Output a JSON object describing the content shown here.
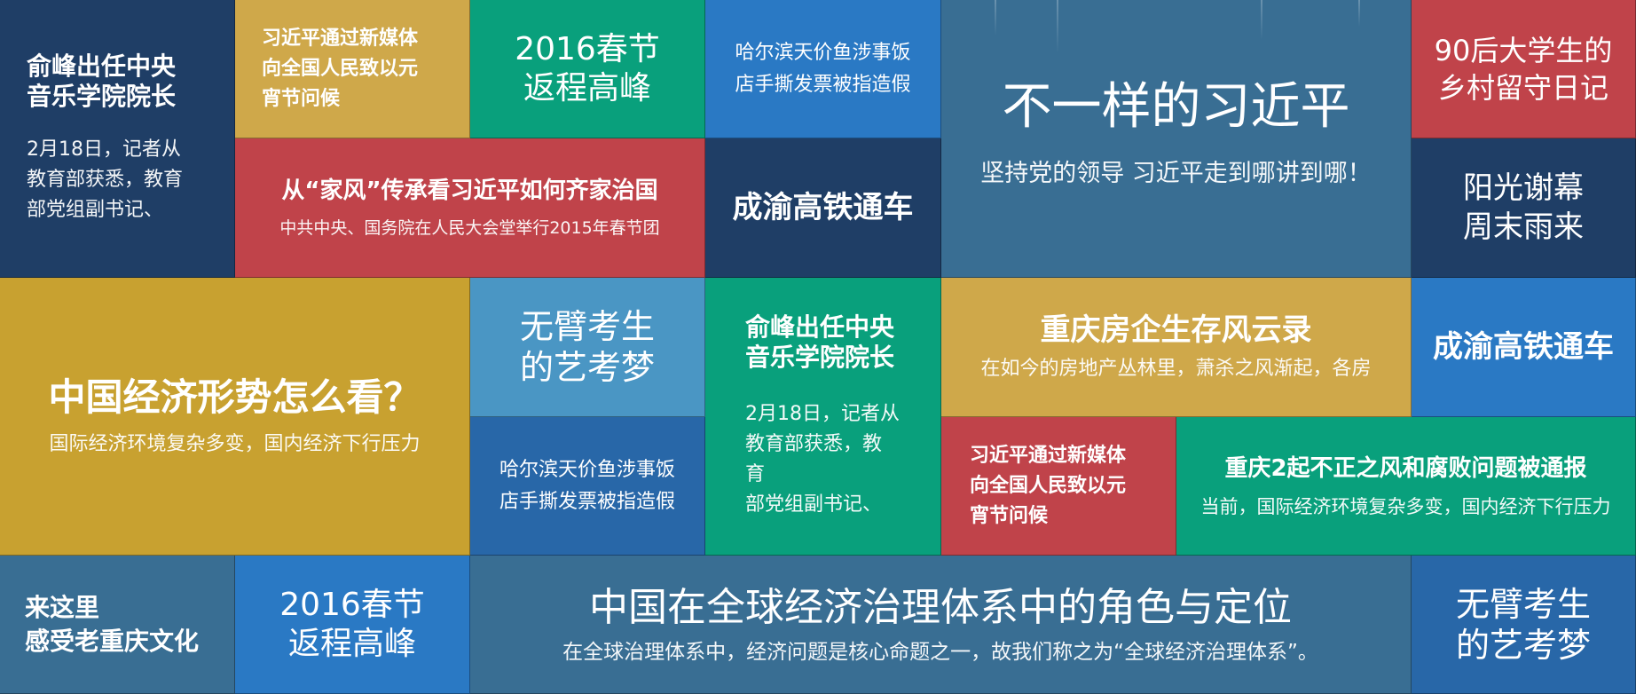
{
  "tiles": {
    "t1": {
      "title": "俞峰出任中央\n音乐学院院长",
      "text": "2月18日，记者从\n教育部获悉，教育\n部党组副书记、"
    },
    "t2": {
      "title": "习近平通过新媒体\n向全国人民致以元\n宵节问候"
    },
    "t3": {
      "title": "2016春节\n返程高峰"
    },
    "t4": {
      "title": "哈尔滨天价鱼涉事饭\n店手撕发票被指造假"
    },
    "t5": {
      "title": "不一样的习近平",
      "text": "坚持党的领导 习近平走到哪讲到哪！"
    },
    "t6": {
      "title": "90后大学生的\n乡村留守日记"
    },
    "t7": {
      "title": "从“家风”传承看习近平如何齐家治国",
      "text": "中共中央、国务院在人民大会堂举行2015年春节团"
    },
    "t8": {
      "title": "成渝高铁通车"
    },
    "t9": {
      "title": "阳光谢幕\n周末雨来"
    },
    "t10": {
      "title": "中国经济形势怎么看？",
      "text": "国际经济环境复杂多变，国内经济下行压力"
    },
    "t11": {
      "title": "无臂考生\n的艺考梦"
    },
    "t12": {
      "title": "俞峰出任中央\n音乐学院院长",
      "text": "2月18日，记者从\n教育部获悉，教育\n部党组副书记、"
    },
    "t13": {
      "title": "重庆房企生存风云录",
      "text": "在如今的房地产丛林里，萧杀之风渐起，各房"
    },
    "t14": {
      "title": "成渝高铁通车"
    },
    "t15": {
      "title": "哈尔滨天价鱼涉事饭\n店手撕发票被指造假"
    },
    "t16": {
      "title": "习近平通过新媒体\n向全国人民致以元\n宵节问候"
    },
    "t17": {
      "title": "重庆2起不正之风和腐败问题被通报",
      "text": "当前，国际经济环境复杂多变，国内经济下行压力"
    },
    "t18": {
      "title": "来这里\n感受老重庆文化"
    },
    "t19": {
      "title": "2016春节\n返程高峰"
    },
    "t20": {
      "title": "中国在全球经济治理体系中的角色与定位",
      "text": "在全球治理体系中，经济问题是核心命题之一，故我们称之为“全球经济治理体系”。"
    },
    "t21": {
      "title": "无臂考生\n的艺考梦"
    }
  }
}
